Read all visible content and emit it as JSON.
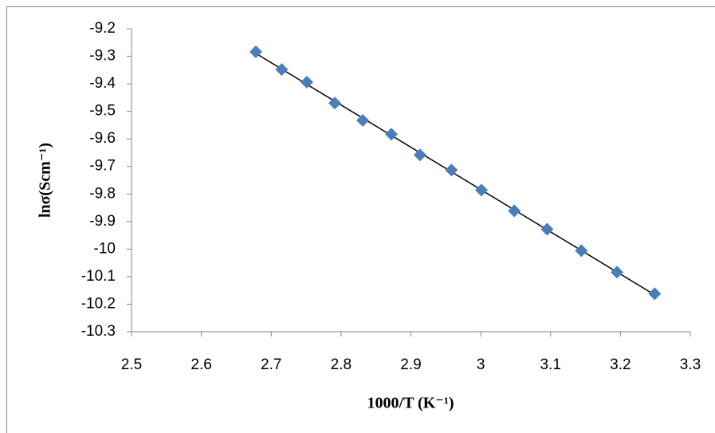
{
  "chart_data": {
    "type": "scatter",
    "xlabel": "1000/T (K⁻¹)",
    "ylabel": "lnσ(Scm⁻¹)",
    "series": [
      {
        "color": "#4a7ebb",
        "x": [
          2.678,
          2.715,
          2.751,
          2.791,
          2.831,
          2.872,
          2.913,
          2.958,
          3.001,
          3.048,
          3.095,
          3.144,
          3.195,
          3.249
        ],
        "values": [
          -9.284,
          -9.348,
          -9.394,
          -9.47,
          -9.533,
          -9.583,
          -9.658,
          -9.713,
          -9.786,
          -9.861,
          -9.928,
          -10.006,
          -10.084,
          -10.162
        ]
      }
    ],
    "trendline": "linear",
    "trendline_color": "#000000",
    "xlim": [
      2.5,
      3.3
    ],
    "xticks": [
      2.5,
      2.6,
      2.7,
      2.8,
      2.9,
      3,
      3.1,
      3.2,
      3.3
    ],
    "ylim": [
      -10.3,
      -9.2
    ],
    "yticks": [
      -9.2,
      -9.3,
      -9.4,
      -9.5,
      -9.6,
      -9.7,
      -9.8,
      -9.9,
      -10,
      -10.1,
      -10.2,
      -10.3
    ],
    "grid": false
  }
}
